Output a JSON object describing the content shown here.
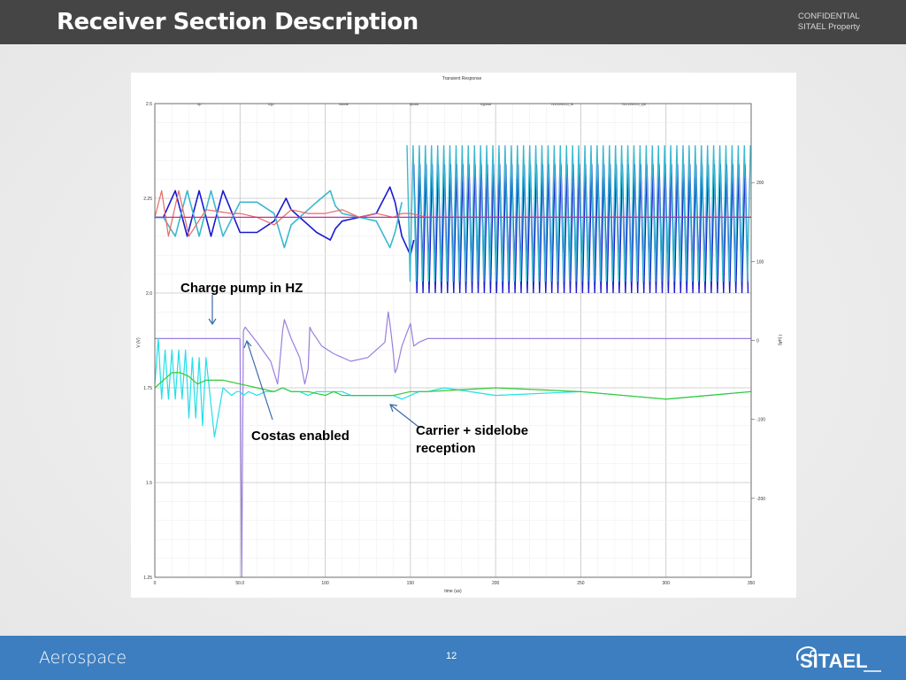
{
  "header": {
    "title": "Receiver Section Description",
    "confidential": "CONFIDENTIAL",
    "property": "SITAEL Property"
  },
  "footer": {
    "section": "Aerospace",
    "page_number": "12",
    "logo_text": "SITAEL"
  },
  "chart_data": {
    "type": "line",
    "title": "Transient Response",
    "xlabel": "time (us)",
    "ylabel_left": "V (V)",
    "ylabel_right": "I (uA)",
    "xlim": [
      0,
      350
    ],
    "ylim_left": [
      1.25,
      2.5
    ],
    "ylim_right": [
      -300,
      300
    ],
    "x_ticks": [
      "0",
      "50.0",
      "100",
      "150",
      "200",
      "250",
      "300",
      "350"
    ],
    "y_ticks_left": [
      "2.5",
      "2.25",
      "2.0",
      "1.75",
      "1.5",
      "1.25"
    ],
    "y_ticks_right": [
      "200",
      "100",
      "0",
      "-100",
      "-200"
    ],
    "legend": [
      "/Ip",
      "/Qp",
      "/vtune",
      "/Ipout",
      "/Qpout",
      "/VCO/VCO_I0",
      "/VCO/VCO_Q0"
    ],
    "grid": true,
    "annotations": [
      {
        "text": "Charge pump in HZ",
        "x": 33,
        "y": 2.0
      },
      {
        "text": "Costas enabled",
        "x": 57,
        "y": 1.72
      },
      {
        "text": "Carrier + sidelobe reception",
        "x": 138,
        "y": 1.73
      }
    ],
    "series": [
      {
        "color": "#1a1ad0",
        "x": [
          0,
          5,
          12,
          19,
          26,
          33,
          40,
          50,
          60,
          70,
          77,
          80,
          85,
          95,
          103,
          106,
          110,
          120,
          130,
          138,
          141,
          145,
          150,
          152,
          160,
          200,
          250,
          300,
          350
        ],
        "y": [
          2.2,
          2.2,
          2.27,
          2.15,
          2.27,
          2.15,
          2.27,
          2.16,
          2.16,
          2.19,
          2.25,
          2.22,
          2.2,
          2.16,
          2.14,
          2.17,
          2.19,
          2.2,
          2.21,
          2.28,
          2.24,
          2.15,
          2.1,
          2.14,
          2.2,
          2.2,
          2.2,
          2.2,
          2.2
        ],
        "band_from_x": 152,
        "band_y": [
          2.0,
          2.34
        ]
      },
      {
        "color": "#3ab8d0",
        "x": [
          0,
          5,
          12,
          19,
          26,
          33,
          40,
          50,
          60,
          70,
          76,
          80,
          85,
          95,
          103,
          106,
          110,
          120,
          130,
          138,
          141,
          145,
          150,
          155,
          200,
          250,
          300,
          350
        ],
        "y": [
          2.2,
          2.2,
          2.15,
          2.27,
          2.15,
          2.27,
          2.15,
          2.24,
          2.24,
          2.21,
          2.12,
          2.18,
          2.2,
          2.24,
          2.27,
          2.23,
          2.21,
          2.2,
          2.19,
          2.12,
          2.16,
          2.24,
          2.2,
          2.2,
          2.2,
          2.2,
          2.2,
          2.2
        ],
        "band_from_x": 148,
        "band_y": [
          2.03,
          2.39
        ]
      },
      {
        "color": "#e86a60",
        "x": [
          0,
          4,
          8,
          14,
          20,
          30,
          45,
          50,
          60,
          70,
          80,
          90,
          100,
          110,
          120,
          130,
          140,
          145,
          150,
          160,
          350
        ],
        "y": [
          2.2,
          2.27,
          2.15,
          2.27,
          2.15,
          2.22,
          2.21,
          2.21,
          2.2,
          2.18,
          2.22,
          2.21,
          2.21,
          2.22,
          2.2,
          2.21,
          2.2,
          2.21,
          2.21,
          2.2,
          2.2
        ]
      },
      {
        "color": "#cc28a0",
        "x": [
          0,
          150,
          150,
          350
        ],
        "y": [
          2.2,
          2.2,
          2.2,
          2.2
        ]
      },
      {
        "color": "#9b7fe0",
        "x": [
          0,
          49,
          50,
          51,
          52,
          53,
          60,
          68,
          72,
          73,
          75,
          76,
          80,
          85,
          88,
          90,
          91,
          92,
          98,
          105,
          115,
          125,
          135,
          137,
          138,
          139,
          140,
          141,
          142,
          145,
          150,
          152,
          155,
          160,
          200,
          250,
          300,
          350
        ],
        "y": [
          1.88,
          1.88,
          1.88,
          1.25,
          1.9,
          1.91,
          1.87,
          1.82,
          1.76,
          1.8,
          1.9,
          1.93,
          1.88,
          1.83,
          1.76,
          1.8,
          1.91,
          1.9,
          1.86,
          1.84,
          1.82,
          1.83,
          1.87,
          1.95,
          1.92,
          1.88,
          1.84,
          1.79,
          1.8,
          1.86,
          1.92,
          1.86,
          1.87,
          1.88,
          1.88,
          1.88,
          1.88,
          1.88
        ]
      },
      {
        "color": "#22e0e8",
        "x": [
          0,
          2,
          4,
          6,
          8,
          10,
          12,
          14,
          16,
          18,
          20,
          22,
          24,
          26,
          28,
          30,
          35,
          40,
          45,
          48,
          50,
          52,
          55,
          60,
          65,
          70,
          75,
          80,
          85,
          90,
          95,
          100,
          105,
          110,
          115,
          120,
          125,
          130,
          135,
          140,
          145,
          150,
          155,
          160,
          170,
          200,
          250,
          300,
          350
        ],
        "y": [
          1.76,
          1.88,
          1.72,
          1.85,
          1.72,
          1.85,
          1.72,
          1.85,
          1.72,
          1.85,
          1.67,
          1.83,
          1.67,
          1.83,
          1.65,
          1.83,
          1.62,
          1.75,
          1.73,
          1.74,
          1.74,
          1.73,
          1.74,
          1.73,
          1.74,
          1.74,
          1.75,
          1.74,
          1.74,
          1.73,
          1.74,
          1.74,
          1.74,
          1.74,
          1.73,
          1.73,
          1.73,
          1.73,
          1.73,
          1.73,
          1.72,
          1.73,
          1.74,
          1.74,
          1.75,
          1.73,
          1.74,
          1.72,
          1.74
        ]
      },
      {
        "color": "#34c834",
        "x": [
          0,
          5,
          10,
          15,
          20,
          25,
          30,
          40,
          50,
          60,
          70,
          75,
          80,
          90,
          100,
          105,
          110,
          120,
          130,
          140,
          150,
          160,
          200,
          250,
          300,
          350
        ],
        "y": [
          1.75,
          1.77,
          1.79,
          1.79,
          1.78,
          1.76,
          1.77,
          1.77,
          1.76,
          1.75,
          1.74,
          1.75,
          1.74,
          1.74,
          1.73,
          1.74,
          1.73,
          1.73,
          1.73,
          1.73,
          1.74,
          1.74,
          1.75,
          1.74,
          1.72,
          1.74
        ]
      }
    ]
  }
}
